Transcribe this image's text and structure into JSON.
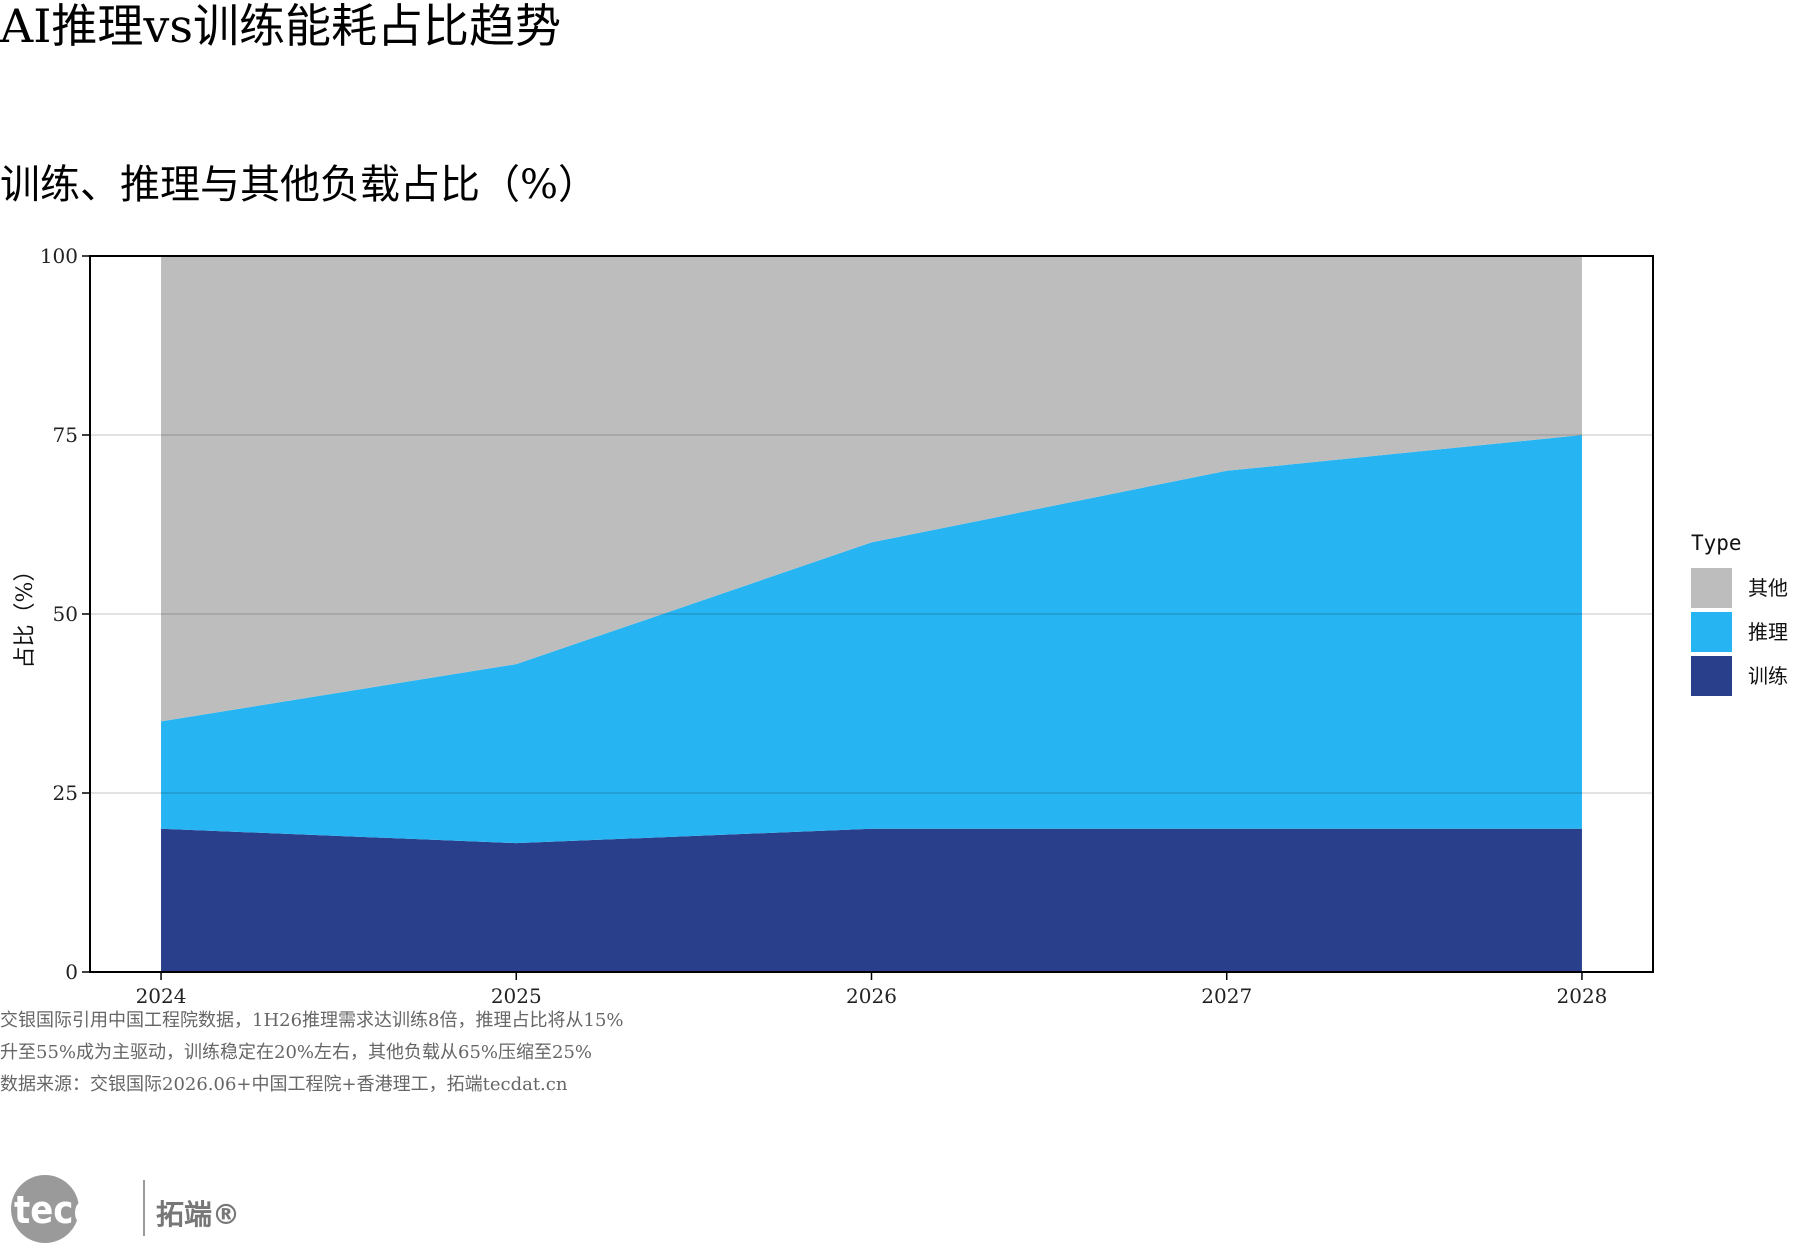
{
  "chart_data": {
    "type": "area",
    "stacked": true,
    "title": "AI推理vs训练能耗占比趋势",
    "subtitle": "训练、推理与其他负载占比（%）",
    "ylabel": "占比（%）",
    "xlabel": "",
    "x": [
      2024,
      2025,
      2026,
      2027,
      2028
    ],
    "ylim": [
      0,
      100
    ],
    "yticks": [
      0,
      25,
      50,
      75,
      100
    ],
    "grid": true,
    "legend": {
      "title": "Type",
      "position": "right"
    },
    "series": [
      {
        "name": "训练",
        "color": "#2a3f8c",
        "values": [
          20,
          18,
          20,
          20,
          20
        ]
      },
      {
        "name": "推理",
        "color": "#27b4f2",
        "values": [
          15,
          25,
          40,
          50,
          55
        ]
      },
      {
        "name": "其他",
        "color": "#bdbdbd",
        "values": [
          65,
          57,
          40,
          30,
          25
        ]
      }
    ],
    "legend_order": [
      "其他",
      "推理",
      "训练"
    ]
  },
  "caption": {
    "line1": "交银国际引用中国工程院数据，1H26推理需求达训练8倍，推理占比将从15%",
    "line2": "升至55%成为主驱动，训练稳定在20%左右，其他负载从65%压缩至25%",
    "line3": "数据来源：交银国际2026.06+中国工程院+香港理工，拓端tecdat.cn"
  },
  "logo": {
    "text_en": "tecdat",
    "text_cn": "拓端®",
    "color": "#8a8a8a"
  }
}
